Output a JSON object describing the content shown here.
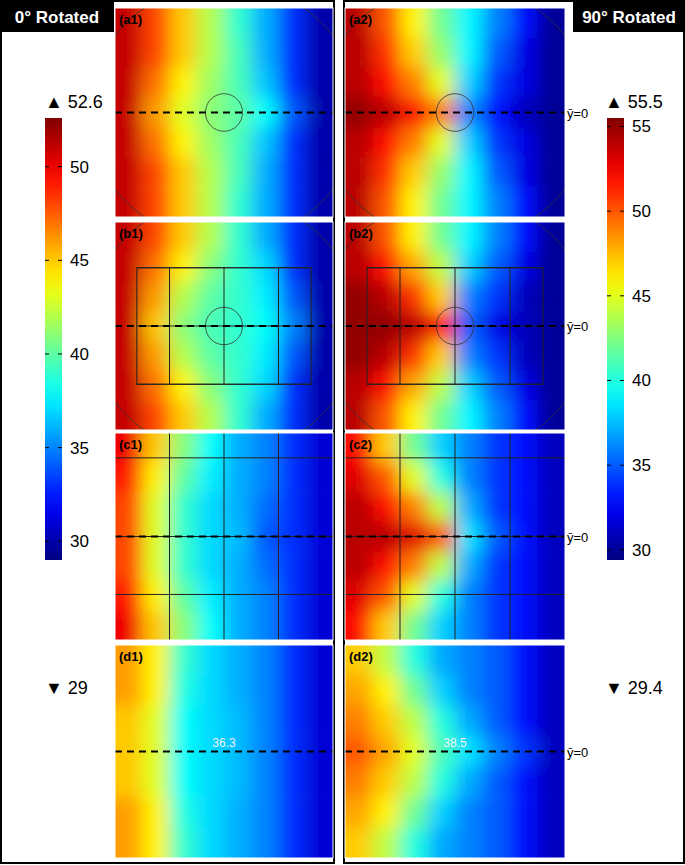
{
  "chart_data": [
    {
      "type": "heatmap",
      "title": "0° Rotated",
      "colorbar": {
        "range": [
          29,
          52.6
        ],
        "ticks": [
          30,
          35,
          40,
          45,
          50
        ],
        "max_label": "▲ 52.6",
        "min_label": "▼ 29"
      },
      "panels": [
        {
          "label": "(a1)",
          "cells": [
            [
              51,
              48,
              45,
              42,
              39,
              36,
              33,
              30
            ],
            [
              51,
              48,
              45,
              42,
              39.5,
              36,
              33,
              30
            ],
            [
              51,
              47,
              44,
              41.5,
              39.5,
              36.5,
              33,
              30
            ],
            [
              51,
              46,
              43,
              41,
              40,
              38,
              34,
              30
            ],
            [
              51,
              47,
              44,
              41.5,
              39.5,
              36.5,
              33,
              30
            ],
            [
              51,
              48,
              45,
              42,
              39.5,
              36,
              33,
              30
            ],
            [
              51,
              48,
              45,
              42,
              39,
              36,
              33,
              30
            ]
          ]
        },
        {
          "label": "(b1)",
          "cells": [
            [
              51,
              48,
              45,
              42,
              39,
              36,
              33,
              30
            ],
            [
              51,
              47,
              44,
              41,
              39,
              37,
              33,
              30
            ],
            [
              51,
              46,
              42,
              40,
              39,
              37.5,
              34,
              30
            ],
            [
              51,
              45,
              41,
              39.5,
              39,
              38,
              35,
              30
            ],
            [
              51,
              46,
              42,
              40,
              39,
              37.5,
              34,
              30
            ],
            [
              51,
              47,
              44,
              41,
              39,
              37,
              33,
              30
            ],
            [
              51,
              48,
              45,
              42,
              39,
              36,
              33,
              30
            ]
          ]
        },
        {
          "label": "(c1)",
          "cells": [
            [
              50,
              45,
              41,
              38,
              36,
              35,
              33,
              31
            ],
            [
              49,
              44,
              40,
              37.5,
              36,
              35,
              33,
              31
            ],
            [
              48,
              43,
              39,
              37,
              36,
              34.5,
              33,
              31
            ],
            [
              48,
              43,
              39,
              37,
              36.3,
              34,
              33,
              31
            ],
            [
              48,
              43,
              39,
              37,
              36,
              34.5,
              33,
              31
            ],
            [
              49,
              44,
              40,
              37.5,
              36,
              35,
              33,
              31
            ],
            [
              50,
              45,
              41,
              38,
              36,
              35,
              33,
              31
            ]
          ]
        },
        {
          "label": "(d1)",
          "annotation": 36.3,
          "cells": [
            [
              46,
              44,
              39,
              37,
              36,
              35,
              33,
              31
            ],
            [
              46,
              44,
              38.5,
              37,
              36,
              35,
              33,
              31
            ],
            [
              45,
              43,
              38,
              37,
              36.3,
              35,
              33,
              31
            ],
            [
              45,
              43,
              38,
              37,
              36.3,
              35,
              33,
              31
            ],
            [
              45,
              43,
              38,
              37,
              36.3,
              35,
              33,
              31
            ],
            [
              46,
              44,
              38.5,
              37,
              36,
              35,
              33,
              31
            ],
            [
              46,
              44,
              39,
              37,
              36,
              35,
              33,
              31
            ]
          ]
        }
      ]
    },
    {
      "type": "heatmap",
      "title": "90° Rotated",
      "colorbar": {
        "range": [
          29.4,
          55.5
        ],
        "ticks": [
          30,
          35,
          40,
          45,
          50,
          55
        ],
        "max_label": "▲ 55.5",
        "min_label": "▼ 29.4"
      },
      "panels": [
        {
          "label": "(a2)",
          "y_label": "ȳ=0",
          "cells": [
            [
              54,
              50,
              46,
              42,
              39,
              36,
              33,
              30
            ],
            [
              54,
              51,
              47,
              43,
              39,
              35,
              32,
              30
            ],
            [
              54,
              52,
              49,
              45,
              38,
              34,
              32,
              30
            ],
            [
              55,
              54,
              52,
              49,
              36,
              33,
              31,
              30
            ],
            [
              54,
              52,
              49,
              45,
              38,
              34,
              32,
              30
            ],
            [
              54,
              51,
              47,
              43,
              39,
              35,
              32,
              30
            ],
            [
              54,
              50,
              46,
              42,
              39,
              36,
              33,
              30
            ]
          ]
        },
        {
          "label": "(b2)",
          "y_label": "ȳ=0",
          "cells": [
            [
              54,
              50,
              46,
              42,
              39,
              36,
              33,
              30
            ],
            [
              54,
              52,
              48,
              44,
              38,
              35,
              32,
              30
            ],
            [
              55,
              54,
              51,
              47,
              36,
              34,
              31,
              30
            ],
            [
              55,
              55,
              54,
              52,
              35,
              32,
              31,
              30
            ],
            [
              55,
              54,
              51,
              47,
              36,
              34,
              31,
              30
            ],
            [
              54,
              52,
              48,
              44,
              38,
              35,
              32,
              30
            ],
            [
              54,
              50,
              46,
              42,
              39,
              36,
              33,
              30
            ]
          ]
        },
        {
          "label": "(c2)",
          "y_label": "ȳ=0",
          "cells": [
            [
              52,
              47,
              42,
              38,
              36,
              34,
              33,
              31
            ],
            [
              53,
              50,
              45,
              40,
              36,
              34,
              33,
              31
            ],
            [
              54,
              52,
              49,
              44,
              37,
              34,
              33,
              31
            ],
            [
              54,
              54,
              53,
              50,
              38.5,
              35,
              33,
              31
            ],
            [
              54,
              52,
              49,
              44,
              37,
              34,
              33,
              31
            ],
            [
              53,
              50,
              45,
              40,
              36,
              34,
              33,
              31
            ],
            [
              52,
              47,
              42,
              38,
              36,
              34,
              33,
              31
            ]
          ]
        },
        {
          "label": "(d2)",
          "y_label": "ȳ=0",
          "annotation": 38.5,
          "cells": [
            [
              47,
              44,
              40,
              37,
              36,
              35,
              33,
              31
            ],
            [
              48,
              46,
              42,
              38,
              36,
              35,
              33,
              31
            ],
            [
              49,
              47,
              44,
              40,
              37,
              35,
              33,
              31
            ],
            [
              50,
              48,
              45,
              41,
              38.5,
              36,
              34,
              31
            ],
            [
              49,
              47,
              44,
              40,
              37,
              35,
              33,
              31
            ],
            [
              48,
              46,
              42,
              38,
              36,
              35,
              33,
              31
            ],
            [
              47,
              44,
              40,
              37,
              36,
              35,
              33,
              31
            ]
          ]
        }
      ]
    }
  ]
}
